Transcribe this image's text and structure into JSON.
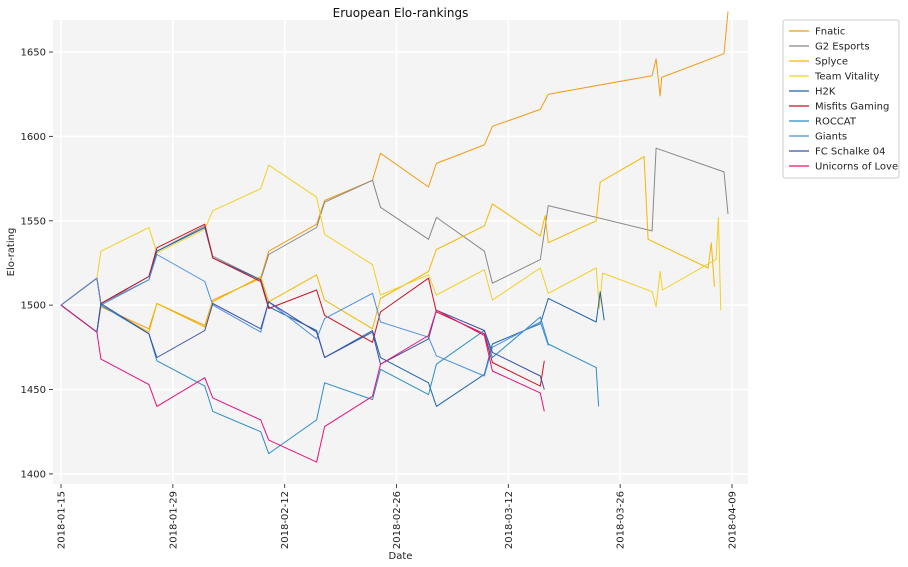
{
  "chart_data": {
    "type": "line",
    "title": "Eruopean Elo-rankings",
    "xlabel": "Date",
    "ylabel": "Elo-rating",
    "x_type": "date",
    "xlim": [
      "2018-01-14",
      "2018-04-11"
    ],
    "ylim": [
      1394,
      1669
    ],
    "x_ticks": [
      "2018-01-15",
      "2018-01-29",
      "2018-02-12",
      "2018-02-26",
      "2018-03-12",
      "2018-03-26",
      "2018-04-09"
    ],
    "y_ticks": [
      1400,
      1450,
      1500,
      1550,
      1600,
      1650
    ],
    "grid": true,
    "legend_position": "outside-right",
    "background": "#f4f4f4",
    "series": [
      {
        "name": "Fnatic",
        "color": "#f39c12",
        "points": [
          [
            "2018-01-15",
            1500
          ],
          [
            "2018-01-19.5",
            1484
          ],
          [
            "2018-01-20",
            1499
          ],
          [
            "2018-01-26",
            1486
          ],
          [
            "2018-01-27",
            1501
          ],
          [
            "2018-02-02",
            1488
          ],
          [
            "2018-02-03",
            1503
          ],
          [
            "2018-02-09",
            1516
          ],
          [
            "2018-02-10",
            1532
          ],
          [
            "2018-02-16",
            1548
          ],
          [
            "2018-02-17",
            1562
          ],
          [
            "2018-02-23",
            1574
          ],
          [
            "2018-02-24",
            1590
          ],
          [
            "2018-03-02",
            1570
          ],
          [
            "2018-03-03",
            1584
          ],
          [
            "2018-03-09",
            1595
          ],
          [
            "2018-03-10",
            1606
          ],
          [
            "2018-03-16",
            1616
          ],
          [
            "2018-03-17",
            1625
          ],
          [
            "2018-03-30",
            1636
          ],
          [
            "2018-03-30.5",
            1646
          ],
          [
            "2018-03-31",
            1624
          ],
          [
            "2018-03-31.2",
            1635
          ],
          [
            "2018-04-08",
            1649
          ],
          [
            "2018-04-08.5",
            1674
          ]
        ]
      },
      {
        "name": "G2 Esports",
        "color": "#888888",
        "points": [
          [
            "2018-01-15",
            1500
          ],
          [
            "2018-01-19.5",
            1516
          ],
          [
            "2018-01-20",
            1501
          ],
          [
            "2018-01-26",
            1515
          ],
          [
            "2018-01-27",
            1532
          ],
          [
            "2018-02-02",
            1547
          ],
          [
            "2018-02-03",
            1529
          ],
          [
            "2018-02-09",
            1515
          ],
          [
            "2018-02-10",
            1530
          ],
          [
            "2018-02-16",
            1546
          ],
          [
            "2018-02-17",
            1561
          ],
          [
            "2018-02-23",
            1574
          ],
          [
            "2018-02-24",
            1558
          ],
          [
            "2018-03-02",
            1539
          ],
          [
            "2018-03-03",
            1552
          ],
          [
            "2018-03-09",
            1532
          ],
          [
            "2018-03-10",
            1513
          ],
          [
            "2018-03-16",
            1527
          ],
          [
            "2018-03-17",
            1559
          ],
          [
            "2018-03-30",
            1544
          ],
          [
            "2018-03-30.5",
            1593
          ],
          [
            "2018-04-08",
            1579
          ],
          [
            "2018-04-08.5",
            1554
          ]
        ]
      },
      {
        "name": "Splyce",
        "color": "#f5b800",
        "points": [
          [
            "2018-01-15",
            1500
          ],
          [
            "2018-01-19.5",
            1484
          ],
          [
            "2018-01-20",
            1500
          ],
          [
            "2018-01-26",
            1484
          ],
          [
            "2018-01-27",
            1501
          ],
          [
            "2018-02-02",
            1487
          ],
          [
            "2018-02-03",
            1502
          ],
          [
            "2018-02-09",
            1517
          ],
          [
            "2018-02-10",
            1502
          ],
          [
            "2018-02-16",
            1518
          ],
          [
            "2018-02-17",
            1503
          ],
          [
            "2018-02-23",
            1486
          ],
          [
            "2018-02-24",
            1504
          ],
          [
            "2018-03-02",
            1520
          ],
          [
            "2018-03-03",
            1533
          ],
          [
            "2018-03-09",
            1547
          ],
          [
            "2018-03-10",
            1560
          ],
          [
            "2018-03-16",
            1541
          ],
          [
            "2018-03-16.6",
            1553
          ],
          [
            "2018-03-17",
            1537
          ],
          [
            "2018-03-23",
            1550
          ],
          [
            "2018-03-23.5",
            1573
          ],
          [
            "2018-03-29",
            1588
          ],
          [
            "2018-03-29.5",
            1539
          ],
          [
            "2018-04-06",
            1522
          ],
          [
            "2018-04-06.4",
            1537
          ],
          [
            "2018-04-06.8",
            1511
          ]
        ]
      },
      {
        "name": "Team Vitality",
        "color": "#f2d027",
        "points": [
          [
            "2018-01-15",
            1500
          ],
          [
            "2018-01-19.5",
            1516
          ],
          [
            "2018-01-20",
            1532
          ],
          [
            "2018-01-26",
            1546
          ],
          [
            "2018-01-27",
            1531
          ],
          [
            "2018-02-02",
            1545
          ],
          [
            "2018-02-03",
            1556
          ],
          [
            "2018-02-09",
            1569
          ],
          [
            "2018-02-10",
            1583
          ],
          [
            "2018-02-16",
            1564
          ],
          [
            "2018-02-17",
            1542
          ],
          [
            "2018-02-23",
            1524
          ],
          [
            "2018-02-24",
            1506
          ],
          [
            "2018-03-02",
            1518
          ],
          [
            "2018-03-03",
            1506
          ],
          [
            "2018-03-09",
            1521
          ],
          [
            "2018-03-10",
            1503
          ],
          [
            "2018-03-16",
            1522
          ],
          [
            "2018-03-17",
            1507
          ],
          [
            "2018-03-23",
            1522
          ],
          [
            "2018-03-23.4",
            1498
          ],
          [
            "2018-03-23.8",
            1519
          ],
          [
            "2018-03-30",
            1508
          ],
          [
            "2018-03-30.5",
            1499
          ],
          [
            "2018-03-31",
            1520
          ],
          [
            "2018-03-31.3",
            1509
          ],
          [
            "2018-04-07",
            1527
          ],
          [
            "2018-04-07.3",
            1552
          ],
          [
            "2018-04-07.6",
            1497
          ]
        ]
      },
      {
        "name": "H2K",
        "color": "#1f63a8",
        "points": [
          [
            "2018-01-15",
            1500
          ],
          [
            "2018-01-19.5",
            1484
          ],
          [
            "2018-01-20",
            1501
          ],
          [
            "2018-01-26",
            1517
          ],
          [
            "2018-01-27",
            1532
          ],
          [
            "2018-02-02",
            1546
          ],
          [
            "2018-02-03",
            1528
          ],
          [
            "2018-02-09",
            1515
          ],
          [
            "2018-02-10",
            1499
          ],
          [
            "2018-02-16",
            1485
          ],
          [
            "2018-02-17",
            1469
          ],
          [
            "2018-02-23",
            1485
          ],
          [
            "2018-02-24",
            1469
          ],
          [
            "2018-03-02",
            1454
          ],
          [
            "2018-03-03",
            1440
          ],
          [
            "2018-03-09",
            1459
          ],
          [
            "2018-03-10",
            1477
          ],
          [
            "2018-03-16",
            1489
          ],
          [
            "2018-03-17",
            1504
          ],
          [
            "2018-03-23",
            1490
          ],
          [
            "2018-03-23.5",
            1508
          ],
          [
            "2018-03-24",
            1491
          ]
        ]
      },
      {
        "name": "Misfits Gaming",
        "color": "#cc1122",
        "points": [
          [
            "2018-01-15",
            1500
          ],
          [
            "2018-01-19.5",
            1516
          ],
          [
            "2018-01-20",
            1501
          ],
          [
            "2018-01-26",
            1517
          ],
          [
            "2018-01-27",
            1534
          ],
          [
            "2018-02-02",
            1548
          ],
          [
            "2018-02-03",
            1528
          ],
          [
            "2018-02-09",
            1514
          ],
          [
            "2018-02-10",
            1498
          ],
          [
            "2018-02-16",
            1509
          ],
          [
            "2018-02-17",
            1494
          ],
          [
            "2018-02-23",
            1478
          ],
          [
            "2018-02-24",
            1496
          ],
          [
            "2018-03-02",
            1516
          ],
          [
            "2018-03-03",
            1496
          ],
          [
            "2018-03-09",
            1483
          ],
          [
            "2018-03-10",
            1466
          ],
          [
            "2018-03-16",
            1452
          ],
          [
            "2018-03-16.5",
            1467
          ]
        ]
      },
      {
        "name": "ROCCAT",
        "color": "#2a8ec5",
        "points": [
          [
            "2018-01-15",
            1500
          ],
          [
            "2018-01-19.5",
            1484
          ],
          [
            "2018-01-20",
            1500
          ],
          [
            "2018-01-26",
            1483
          ],
          [
            "2018-01-27",
            1467
          ],
          [
            "2018-02-02",
            1452
          ],
          [
            "2018-02-03",
            1437
          ],
          [
            "2018-02-09",
            1425
          ],
          [
            "2018-02-10",
            1412
          ],
          [
            "2018-02-16",
            1432
          ],
          [
            "2018-02-17",
            1454
          ],
          [
            "2018-02-23",
            1444
          ],
          [
            "2018-02-24",
            1462
          ],
          [
            "2018-03-02",
            1447
          ],
          [
            "2018-03-03",
            1465
          ],
          [
            "2018-03-09",
            1485
          ],
          [
            "2018-03-10",
            1469
          ],
          [
            "2018-03-16",
            1493
          ],
          [
            "2018-03-17",
            1477
          ],
          [
            "2018-03-23",
            1463
          ],
          [
            "2018-03-23.3",
            1440
          ]
        ]
      },
      {
        "name": "Giants",
        "color": "#4a8fe0",
        "points": [
          [
            "2018-01-15",
            1500
          ],
          [
            "2018-01-19.5",
            1516
          ],
          [
            "2018-01-20",
            1500
          ],
          [
            "2018-01-26",
            1515
          ],
          [
            "2018-01-27",
            1530
          ],
          [
            "2018-02-02",
            1514
          ],
          [
            "2018-02-03",
            1500
          ],
          [
            "2018-02-09",
            1484
          ],
          [
            "2018-02-10",
            1502
          ],
          [
            "2018-02-16",
            1480
          ],
          [
            "2018-02-17",
            1492
          ],
          [
            "2018-02-23",
            1507
          ],
          [
            "2018-02-24",
            1490
          ],
          [
            "2018-03-02",
            1481
          ],
          [
            "2018-03-03",
            1470
          ],
          [
            "2018-03-09",
            1458
          ],
          [
            "2018-03-10",
            1475
          ],
          [
            "2018-03-16",
            1490
          ],
          [
            "2018-03-17",
            1476
          ]
        ]
      },
      {
        "name": "FC Schalke 04",
        "color": "#3b4fa8",
        "points": [
          [
            "2018-01-15",
            1500
          ],
          [
            "2018-01-19.5",
            1484
          ],
          [
            "2018-01-20",
            1501
          ],
          [
            "2018-01-26",
            1483
          ],
          [
            "2018-01-27",
            1469
          ],
          [
            "2018-02-02",
            1485
          ],
          [
            "2018-02-03",
            1501
          ],
          [
            "2018-02-09",
            1486
          ],
          [
            "2018-02-10",
            1502
          ],
          [
            "2018-02-16",
            1484
          ],
          [
            "2018-02-17",
            1469
          ],
          [
            "2018-02-23",
            1484
          ],
          [
            "2018-02-24",
            1465
          ],
          [
            "2018-03-02",
            1480
          ],
          [
            "2018-03-03",
            1497
          ],
          [
            "2018-03-09",
            1485
          ],
          [
            "2018-03-10",
            1472
          ],
          [
            "2018-03-16",
            1458
          ],
          [
            "2018-03-16.5",
            1450
          ]
        ]
      },
      {
        "name": "Unicorns of Love",
        "color": "#e3137a",
        "points": [
          [
            "2018-01-15",
            1500
          ],
          [
            "2018-01-19.5",
            1484
          ],
          [
            "2018-01-20",
            1468
          ],
          [
            "2018-01-26",
            1453
          ],
          [
            "2018-01-27",
            1440
          ],
          [
            "2018-02-02",
            1457
          ],
          [
            "2018-02-03",
            1445
          ],
          [
            "2018-02-09",
            1432
          ],
          [
            "2018-02-10",
            1420
          ],
          [
            "2018-02-16",
            1407
          ],
          [
            "2018-02-17",
            1428
          ],
          [
            "2018-02-23",
            1446
          ],
          [
            "2018-02-24",
            1465
          ],
          [
            "2018-03-02",
            1482
          ],
          [
            "2018-03-03",
            1497
          ],
          [
            "2018-03-09",
            1482
          ],
          [
            "2018-03-10",
            1461
          ],
          [
            "2018-03-16",
            1448
          ],
          [
            "2018-03-16.5",
            1437
          ]
        ]
      }
    ]
  }
}
